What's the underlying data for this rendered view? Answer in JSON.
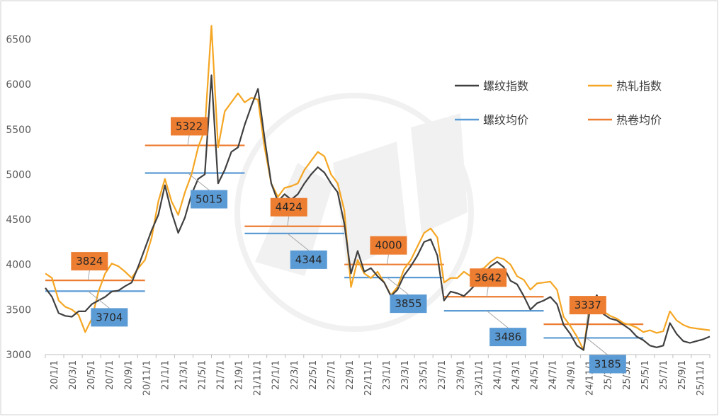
{
  "chart_data": {
    "type": "line",
    "title": "",
    "xlabel": "",
    "ylabel": "",
    "ylim": [
      3000,
      6700
    ],
    "y_ticks": [
      3000,
      3500,
      4000,
      4500,
      5000,
      5500,
      6000,
      6500
    ],
    "x_tick_labels": [
      "20/1/1",
      "20/3/1",
      "20/5/1",
      "20/7/1",
      "20/9/1",
      "20/11/1",
      "21/1/1",
      "21/3/1",
      "21/5/1",
      "21/7/1",
      "21/9/1",
      "21/11/1",
      "22/1/1",
      "22/3/1",
      "22/5/1",
      "22/7/1",
      "22/9/1",
      "22/11/1",
      "23/1/1",
      "23/3/1",
      "23/5/1",
      "23/7/1",
      "23/9/1",
      "23/11/1",
      "24/1/1",
      "24/3/1",
      "24/5/1",
      "24/7/1",
      "24/9/1",
      "24/11/1",
      "25/1/1",
      "25/3/1",
      "25/5/1",
      "25/7/1",
      "25/9/1",
      "25/11/1"
    ],
    "legend_position": "top-right",
    "grid": false,
    "series": [
      {
        "name": "螺纹指数",
        "color": "#404040",
        "points": [
          [
            0,
            3740
          ],
          [
            1,
            3640
          ],
          [
            2,
            3460
          ],
          [
            3,
            3430
          ],
          [
            4,
            3420
          ],
          [
            5,
            3480
          ],
          [
            6,
            3480
          ],
          [
            7,
            3560
          ],
          [
            8,
            3600
          ],
          [
            9,
            3640
          ],
          [
            10,
            3700
          ],
          [
            11,
            3710
          ],
          [
            12,
            3760
          ],
          [
            13,
            3800
          ],
          [
            14,
            3980
          ],
          [
            15,
            4180
          ],
          [
            16,
            4380
          ],
          [
            17,
            4550
          ],
          [
            18,
            4880
          ],
          [
            19,
            4580
          ],
          [
            20,
            4350
          ],
          [
            21,
            4520
          ],
          [
            22,
            4780
          ],
          [
            23,
            4950
          ],
          [
            24,
            5000
          ],
          [
            25,
            6100
          ],
          [
            26,
            4900
          ],
          [
            27,
            5050
          ],
          [
            28,
            5250
          ],
          [
            29,
            5300
          ],
          [
            30,
            5550
          ],
          [
            31,
            5760
          ],
          [
            32,
            5950
          ],
          [
            33,
            5400
          ],
          [
            34,
            4900
          ],
          [
            35,
            4700
          ],
          [
            36,
            4780
          ],
          [
            37,
            4720
          ],
          [
            38,
            4780
          ],
          [
            39,
            4900
          ],
          [
            40,
            5000
          ],
          [
            41,
            5080
          ],
          [
            42,
            5020
          ],
          [
            43,
            4900
          ],
          [
            44,
            4800
          ],
          [
            45,
            4450
          ],
          [
            46,
            3900
          ],
          [
            47,
            4150
          ],
          [
            48,
            3920
          ],
          [
            49,
            3960
          ],
          [
            50,
            3870
          ],
          [
            51,
            3800
          ],
          [
            52,
            3650
          ],
          [
            53,
            3720
          ],
          [
            54,
            3880
          ],
          [
            55,
            3980
          ],
          [
            56,
            4100
          ],
          [
            57,
            4250
          ],
          [
            58,
            4280
          ],
          [
            59,
            4100
          ],
          [
            60,
            3600
          ],
          [
            61,
            3700
          ],
          [
            62,
            3680
          ],
          [
            63,
            3650
          ],
          [
            64,
            3720
          ],
          [
            65,
            3800
          ],
          [
            66,
            3900
          ],
          [
            67,
            3980
          ],
          [
            68,
            4030
          ],
          [
            69,
            3970
          ],
          [
            70,
            3820
          ],
          [
            71,
            3780
          ],
          [
            72,
            3650
          ],
          [
            73,
            3500
          ],
          [
            74,
            3570
          ],
          [
            75,
            3600
          ],
          [
            76,
            3640
          ],
          [
            77,
            3560
          ],
          [
            78,
            3330
          ],
          [
            79,
            3230
          ],
          [
            80,
            3100
          ],
          [
            81,
            3050
          ],
          [
            82,
            3520
          ],
          [
            83,
            3660
          ],
          [
            84,
            3450
          ],
          [
            85,
            3400
          ],
          [
            86,
            3380
          ],
          [
            87,
            3330
          ],
          [
            88,
            3280
          ],
          [
            89,
            3200
          ],
          [
            90,
            3160
          ],
          [
            91,
            3100
          ],
          [
            92,
            3080
          ],
          [
            93,
            3100
          ],
          [
            94,
            3350
          ],
          [
            95,
            3230
          ],
          [
            96,
            3150
          ],
          [
            97,
            3130
          ],
          [
            98,
            3150
          ],
          [
            99,
            3170
          ],
          [
            100,
            3200
          ]
        ]
      },
      {
        "name": "热轧指数",
        "color": "#F5A623",
        "points": [
          [
            0,
            3900
          ],
          [
            1,
            3850
          ],
          [
            2,
            3600
          ],
          [
            3,
            3530
          ],
          [
            4,
            3500
          ],
          [
            5,
            3440
          ],
          [
            6,
            3250
          ],
          [
            7,
            3400
          ],
          [
            8,
            3700
          ],
          [
            9,
            3900
          ],
          [
            10,
            4010
          ],
          [
            11,
            3980
          ],
          [
            12,
            3920
          ],
          [
            13,
            3850
          ],
          [
            14,
            3960
          ],
          [
            15,
            4050
          ],
          [
            16,
            4300
          ],
          [
            17,
            4700
          ],
          [
            18,
            4950
          ],
          [
            19,
            4700
          ],
          [
            20,
            4550
          ],
          [
            21,
            4800
          ],
          [
            22,
            5000
          ],
          [
            23,
            5300
          ],
          [
            24,
            5500
          ],
          [
            25,
            6650
          ],
          [
            26,
            5300
          ],
          [
            27,
            5700
          ],
          [
            28,
            5800
          ],
          [
            29,
            5900
          ],
          [
            30,
            5800
          ],
          [
            31,
            5850
          ],
          [
            32,
            5830
          ],
          [
            33,
            5300
          ],
          [
            34,
            4900
          ],
          [
            35,
            4750
          ],
          [
            36,
            4850
          ],
          [
            37,
            4870
          ],
          [
            38,
            4900
          ],
          [
            39,
            5050
          ],
          [
            40,
            5150
          ],
          [
            41,
            5250
          ],
          [
            42,
            5200
          ],
          [
            43,
            5000
          ],
          [
            44,
            4900
          ],
          [
            45,
            4600
          ],
          [
            46,
            3750
          ],
          [
            47,
            4050
          ],
          [
            48,
            3900
          ],
          [
            49,
            3850
          ],
          [
            50,
            3920
          ],
          [
            51,
            3800
          ],
          [
            52,
            3660
          ],
          [
            53,
            3750
          ],
          [
            54,
            3950
          ],
          [
            55,
            4050
          ],
          [
            56,
            4200
          ],
          [
            57,
            4350
          ],
          [
            58,
            4400
          ],
          [
            59,
            4300
          ],
          [
            60,
            3800
          ],
          [
            61,
            3850
          ],
          [
            62,
            3850
          ],
          [
            63,
            3920
          ],
          [
            64,
            3870
          ],
          [
            65,
            3930
          ],
          [
            66,
            3960
          ],
          [
            67,
            4030
          ],
          [
            68,
            4080
          ],
          [
            69,
            4060
          ],
          [
            70,
            4000
          ],
          [
            71,
            3870
          ],
          [
            72,
            3830
          ],
          [
            73,
            3720
          ],
          [
            74,
            3790
          ],
          [
            75,
            3800
          ],
          [
            76,
            3810
          ],
          [
            77,
            3720
          ],
          [
            78,
            3420
          ],
          [
            79,
            3320
          ],
          [
            80,
            3200
          ],
          [
            81,
            3050
          ],
          [
            82,
            3600
          ],
          [
            83,
            3560
          ],
          [
            84,
            3480
          ],
          [
            85,
            3430
          ],
          [
            86,
            3400
          ],
          [
            87,
            3350
          ],
          [
            88,
            3330
          ],
          [
            89,
            3300
          ],
          [
            90,
            3250
          ],
          [
            91,
            3270
          ],
          [
            92,
            3240
          ],
          [
            93,
            3260
          ],
          [
            94,
            3480
          ],
          [
            95,
            3380
          ],
          [
            96,
            3330
          ],
          [
            97,
            3300
          ],
          [
            98,
            3290
          ],
          [
            99,
            3280
          ],
          [
            100,
            3270
          ]
        ]
      }
    ],
    "averages": [
      {
        "name": "螺纹均价",
        "segment": [
          0,
          15
        ],
        "value": 3704
      },
      {
        "name": "热卷均价",
        "segment": [
          0,
          15
        ],
        "value": 3824
      },
      {
        "name": "螺纹均价",
        "segment": [
          15,
          30
        ],
        "value": 5015
      },
      {
        "name": "热卷均价",
        "segment": [
          15,
          30
        ],
        "value": 5322
      },
      {
        "name": "螺纹均价",
        "segment": [
          30,
          45
        ],
        "value": 4344
      },
      {
        "name": "热卷均价",
        "segment": [
          30,
          45
        ],
        "value": 4424
      },
      {
        "name": "螺纹均价",
        "segment": [
          45,
          60
        ],
        "value": 3855
      },
      {
        "name": "热卷均价",
        "segment": [
          45,
          60
        ],
        "value": 4000
      },
      {
        "name": "螺纹均价",
        "segment": [
          60,
          75
        ],
        "value": 3486
      },
      {
        "name": "热卷均价",
        "segment": [
          60,
          75
        ],
        "value": 3642
      },
      {
        "name": "螺纹均价",
        "segment": [
          75,
          90
        ],
        "value": 3185
      },
      {
        "name": "热卷均价",
        "segment": [
          75,
          90
        ],
        "value": 3337
      }
    ],
    "average_colors": {
      "螺纹均价": "#5B9BD5",
      "热卷均价": "#ED7D31"
    },
    "legend": [
      "螺纹指数",
      "热轧指数",
      "螺纹均价",
      "热卷均价"
    ]
  }
}
